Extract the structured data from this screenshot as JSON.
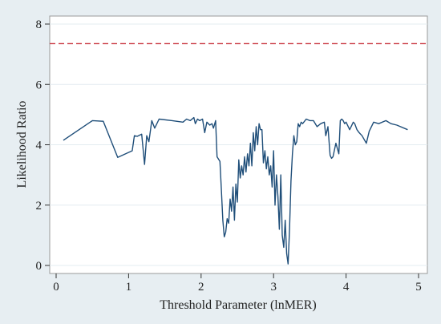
{
  "chart_data": {
    "type": "line",
    "xlabel": "Threshold Parameter (lnMER)",
    "ylabel": "Likelihood Ratio",
    "xlim": [
      0,
      5
    ],
    "ylim": [
      0,
      8
    ],
    "x_ticks": [
      0,
      1,
      2,
      3,
      4,
      5
    ],
    "y_ticks": [
      0,
      2,
      4,
      6,
      8
    ],
    "x_tick_labels": [
      "0",
      "1",
      "2",
      "3",
      "4",
      "5"
    ],
    "y_tick_labels": [
      "0",
      "2",
      "4",
      "6",
      "8"
    ],
    "grid": "horizontal",
    "legend": "none",
    "reference_line": {
      "y": 7.35,
      "style": "dashed",
      "color": "#c8323c"
    },
    "series": [
      {
        "color": "#1f4e79",
        "x": [
          0.1,
          0.5,
          0.65,
          0.85,
          1.05,
          1.08,
          1.12,
          1.18,
          1.22,
          1.25,
          1.28,
          1.32,
          1.36,
          1.42,
          1.6,
          1.75,
          1.8,
          1.85,
          1.9,
          1.92,
          1.95,
          1.98,
          2.02,
          2.05,
          2.08,
          2.12,
          2.15,
          2.17,
          2.2,
          2.22,
          2.26,
          2.28,
          2.3,
          2.32,
          2.34,
          2.36,
          2.38,
          2.4,
          2.42,
          2.44,
          2.46,
          2.48,
          2.5,
          2.52,
          2.54,
          2.56,
          2.58,
          2.6,
          2.62,
          2.64,
          2.66,
          2.68,
          2.7,
          2.72,
          2.74,
          2.76,
          2.78,
          2.8,
          2.82,
          2.84,
          2.86,
          2.88,
          2.9,
          2.92,
          2.94,
          2.96,
          2.98,
          3.0,
          3.02,
          3.04,
          3.06,
          3.08,
          3.1,
          3.12,
          3.14,
          3.16,
          3.18,
          3.2,
          3.22,
          3.24,
          3.26,
          3.28,
          3.3,
          3.32,
          3.34,
          3.36,
          3.38,
          3.4,
          3.45,
          3.5,
          3.55,
          3.6,
          3.65,
          3.7,
          3.72,
          3.75,
          3.78,
          3.8,
          3.82,
          3.86,
          3.9,
          3.92,
          3.94,
          3.96,
          3.98,
          4.0,
          4.05,
          4.1,
          4.12,
          4.15,
          4.18,
          4.22,
          4.28,
          4.32,
          4.38,
          4.45,
          4.55,
          4.62,
          4.7,
          4.85
        ],
        "y": [
          4.15,
          4.8,
          4.78,
          3.58,
          3.8,
          4.3,
          4.28,
          4.35,
          3.35,
          4.3,
          4.1,
          4.8,
          4.55,
          4.85,
          4.8,
          4.75,
          4.85,
          4.8,
          4.9,
          4.7,
          4.85,
          4.8,
          4.85,
          4.4,
          4.75,
          4.65,
          4.7,
          4.55,
          4.8,
          3.6,
          3.45,
          2.5,
          1.5,
          0.95,
          1.1,
          1.55,
          1.4,
          2.2,
          1.8,
          2.6,
          1.5,
          2.7,
          2.1,
          3.5,
          2.9,
          3.3,
          3.0,
          3.6,
          3.1,
          3.7,
          3.3,
          4.05,
          3.3,
          4.4,
          3.8,
          4.6,
          4.0,
          4.7,
          4.5,
          4.5,
          3.4,
          3.8,
          3.2,
          3.6,
          3.0,
          3.3,
          2.6,
          3.8,
          2.0,
          3.0,
          2.3,
          1.2,
          3.0,
          1.0,
          0.6,
          1.5,
          0.4,
          0.05,
          1.2,
          2.8,
          3.7,
          4.3,
          4.0,
          4.1,
          4.7,
          4.6,
          4.75,
          4.7,
          4.85,
          4.8,
          4.8,
          4.6,
          4.7,
          4.75,
          4.3,
          4.6,
          3.65,
          3.55,
          3.6,
          4.05,
          3.7,
          4.8,
          4.85,
          4.8,
          4.7,
          4.75,
          4.5,
          4.75,
          4.7,
          4.5,
          4.4,
          4.3,
          4.05,
          4.45,
          4.75,
          4.7,
          4.8,
          4.7,
          4.65,
          4.5
        ]
      }
    ]
  }
}
